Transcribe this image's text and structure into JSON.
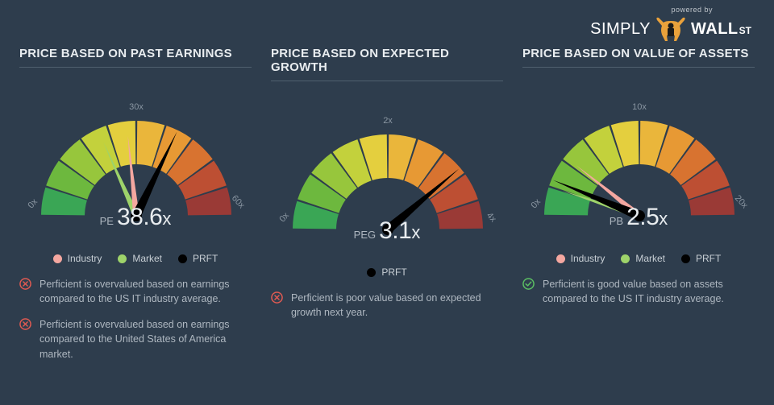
{
  "branding": {
    "powered_by": "powered by",
    "simply": "SIMPLY",
    "wall": "WALL",
    "st": "ST",
    "bull_body": "#e9a13b",
    "bull_dark": "#1a1a1a"
  },
  "layout": {
    "background": "#2e3d4d",
    "title_color": "#e8ecef",
    "text_color": "#aeb7c0",
    "divider_color": "#50606f"
  },
  "gauge_common": {
    "start_angle": -180,
    "end_angle": 0,
    "segments": 10,
    "colors": [
      "#3aa655",
      "#6db83e",
      "#97c63c",
      "#c3d13c",
      "#e4cf3e",
      "#eab63b",
      "#e79934",
      "#d87330",
      "#bd4f33",
      "#9a3a36"
    ],
    "tick_color": "#8a96a2",
    "needle_prft": "#000000",
    "needle_industry": "#f4a7a0",
    "needle_market": "#9ed36a"
  },
  "panels": [
    {
      "title": "PRICE BASED ON PAST EARNINGS",
      "metric_label": "PE",
      "metric_value": "38.6",
      "scale_min": 0,
      "scale_max": 60,
      "ticks": [
        "0x",
        "30x",
        "60x"
      ],
      "needles": [
        {
          "kind": "market",
          "value": 22,
          "color": "#9ed36a"
        },
        {
          "kind": "industry",
          "value": 28,
          "color": "#f4a7a0"
        },
        {
          "kind": "prft",
          "value": 38.6,
          "color": "#000000"
        }
      ],
      "legend": [
        {
          "label": "Industry",
          "color": "#f4a7a0"
        },
        {
          "label": "Market",
          "color": "#9ed36a"
        },
        {
          "label": "PRFT",
          "color": "#000000"
        }
      ],
      "notes": [
        {
          "status": "bad",
          "text": "Perficient is overvalued based on earnings compared to the US IT industry average."
        },
        {
          "status": "bad",
          "text": "Perficient is overvalued based on earnings compared to the United States of America market."
        }
      ]
    },
    {
      "title": "PRICE BASED ON EXPECTED GROWTH",
      "metric_label": "PEG",
      "metric_value": "3.1",
      "scale_min": 0,
      "scale_max": 4,
      "ticks": [
        "0x",
        "2x",
        "4x"
      ],
      "needles": [
        {
          "kind": "prft",
          "value": 3.1,
          "color": "#000000"
        }
      ],
      "legend": [
        {
          "label": "PRFT",
          "color": "#000000"
        }
      ],
      "notes": [
        {
          "status": "bad",
          "text": "Perficient is poor value based on expected growth next year."
        }
      ]
    },
    {
      "title": "PRICE BASED ON VALUE OF ASSETS",
      "metric_label": "PB",
      "metric_value": "2.5",
      "scale_min": 0,
      "scale_max": 20,
      "ticks": [
        "0x",
        "10x",
        "20x"
      ],
      "needles": [
        {
          "kind": "industry",
          "value": 4.3,
          "color": "#f4a7a0"
        },
        {
          "kind": "market",
          "value": 2.0,
          "color": "#9ed36a"
        },
        {
          "kind": "prft",
          "value": 2.5,
          "color": "#000000"
        }
      ],
      "legend": [
        {
          "label": "Industry",
          "color": "#f4a7a0"
        },
        {
          "label": "Market",
          "color": "#9ed36a"
        },
        {
          "label": "PRFT",
          "color": "#000000"
        }
      ],
      "notes": [
        {
          "status": "good",
          "text": "Perficient is good value based on assets compared to the US IT industry average."
        }
      ]
    }
  ]
}
